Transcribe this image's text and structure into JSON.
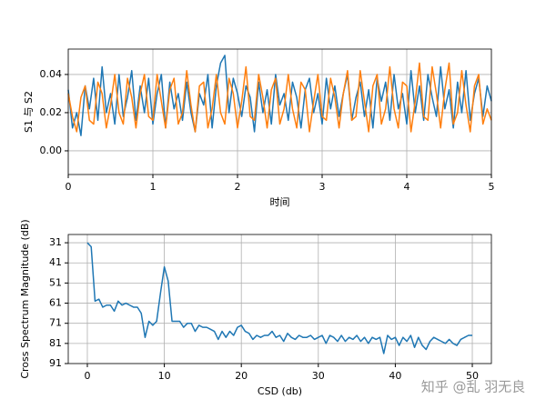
{
  "chart_data": [
    {
      "type": "line",
      "ylabel": "S1 与 S2",
      "xlabel": "时间",
      "x": [
        0,
        0.05,
        0.1,
        0.15,
        0.2,
        0.25,
        0.3,
        0.35,
        0.4,
        0.45,
        0.5,
        0.55,
        0.6,
        0.65,
        0.7,
        0.75,
        0.8,
        0.85,
        0.9,
        0.95,
        1,
        1.05,
        1.1,
        1.15,
        1.2,
        1.25,
        1.3,
        1.35,
        1.4,
        1.45,
        1.5,
        1.55,
        1.6,
        1.65,
        1.7,
        1.75,
        1.8,
        1.85,
        1.9,
        1.95,
        2,
        2.05,
        2.1,
        2.15,
        2.2,
        2.25,
        2.3,
        2.35,
        2.4,
        2.45,
        2.5,
        2.55,
        2.6,
        2.65,
        2.7,
        2.75,
        2.8,
        2.85,
        2.9,
        2.95,
        3,
        3.05,
        3.1,
        3.15,
        3.2,
        3.25,
        3.3,
        3.35,
        3.4,
        3.45,
        3.5,
        3.55,
        3.6,
        3.65,
        3.7,
        3.75,
        3.8,
        3.85,
        3.9,
        3.95,
        4,
        4.05,
        4.1,
        4.15,
        4.2,
        4.25,
        4.3,
        4.35,
        4.4,
        4.45,
        4.5,
        4.55,
        4.6,
        4.65,
        4.7,
        4.75,
        4.8,
        4.85,
        4.9,
        4.95,
        5
      ],
      "series": [
        {
          "color": "#1f77b4",
          "values": [
            0.032,
            0.012,
            0.02,
            0.008,
            0.034,
            0.022,
            0.038,
            0.016,
            0.044,
            0.02,
            0.03,
            0.014,
            0.04,
            0.018,
            0.028,
            0.042,
            0.016,
            0.034,
            0.02,
            0.038,
            0.014,
            0.03,
            0.04,
            0.012,
            0.036,
            0.022,
            0.03,
            0.016,
            0.036,
            0.02,
            0.01,
            0.03,
            0.024,
            0.04,
            0.012,
            0.034,
            0.046,
            0.05,
            0.02,
            0.038,
            0.03,
            0.018,
            0.034,
            0.028,
            0.01,
            0.036,
            0.02,
            0.032,
            0.014,
            0.04,
            0.024,
            0.03,
            0.016,
            0.036,
            0.028,
            0.012,
            0.032,
            0.038,
            0.02,
            0.03,
            0.014,
            0.038,
            0.022,
            0.034,
            0.018,
            0.03,
            0.04,
            0.016,
            0.028,
            0.036,
            0.018,
            0.032,
            0.012,
            0.038,
            0.026,
            0.036,
            0.016,
            0.04,
            0.022,
            0.03,
            0.014,
            0.042,
            0.02,
            0.034,
            0.016,
            0.04,
            0.028,
            0.018,
            0.044,
            0.022,
            0.032,
            0.012,
            0.036,
            0.02,
            0.042,
            0.016,
            0.03,
            0.038,
            0.018,
            0.034,
            0.026
          ]
        },
        {
          "color": "#ff7f0e",
          "values": [
            0.03,
            0.018,
            0.01,
            0.028,
            0.034,
            0.016,
            0.014,
            0.036,
            0.03,
            0.012,
            0.024,
            0.04,
            0.02,
            0.014,
            0.038,
            0.028,
            0.012,
            0.03,
            0.04,
            0.018,
            0.016,
            0.04,
            0.026,
            0.012,
            0.032,
            0.038,
            0.014,
            0.02,
            0.042,
            0.024,
            0.01,
            0.034,
            0.036,
            0.012,
            0.022,
            0.04,
            0.02,
            0.014,
            0.038,
            0.03,
            0.012,
            0.026,
            0.044,
            0.018,
            0.016,
            0.04,
            0.028,
            0.012,
            0.032,
            0.038,
            0.014,
            0.022,
            0.04,
            0.022,
            0.012,
            0.036,
            0.032,
            0.01,
            0.026,
            0.04,
            0.018,
            0.016,
            0.038,
            0.028,
            0.012,
            0.03,
            0.042,
            0.016,
            0.018,
            0.042,
            0.026,
            0.01,
            0.034,
            0.04,
            0.014,
            0.022,
            0.044,
            0.022,
            0.012,
            0.036,
            0.034,
            0.01,
            0.026,
            0.046,
            0.018,
            0.016,
            0.044,
            0.03,
            0.012,
            0.032,
            0.046,
            0.014,
            0.02,
            0.042,
            0.024,
            0.01,
            0.034,
            0.04,
            0.014,
            0.022,
            0.016
          ]
        }
      ],
      "xlim": [
        0,
        5
      ],
      "xticks": [
        0,
        1,
        2,
        3,
        4,
        5
      ],
      "ylim": [
        -0.0124,
        0.0533
      ],
      "yticks": [
        {
          "value": 0,
          "label": "0.00"
        },
        {
          "value": 0.02,
          "label": "0.02"
        },
        {
          "value": 0.04,
          "label": "0.04"
        }
      ],
      "grid": true
    },
    {
      "type": "line",
      "ylabel": "Cross Spectrum Magnitude (dB)",
      "xlabel": "CSD (db)",
      "x": [
        0,
        0.5,
        1,
        1.5,
        2,
        2.5,
        3,
        3.5,
        4,
        4.5,
        5,
        5.5,
        6,
        6.5,
        7,
        7.5,
        8,
        8.5,
        9,
        9.5,
        10,
        10.5,
        11,
        11.5,
        12,
        12.5,
        13,
        13.5,
        14,
        14.5,
        15,
        15.5,
        16,
        16.5,
        17,
        17.5,
        18,
        18.5,
        19,
        19.5,
        20,
        20.5,
        21,
        21.5,
        22,
        22.5,
        23,
        23.5,
        24,
        24.5,
        25,
        25.5,
        26,
        26.5,
        27,
        27.5,
        28,
        28.5,
        29,
        29.5,
        30,
        30.5,
        31,
        31.5,
        32,
        32.5,
        33,
        33.5,
        34,
        34.5,
        35,
        35.5,
        36,
        36.5,
        37,
        37.5,
        38,
        38.5,
        39,
        39.5,
        40,
        40.5,
        41,
        41.5,
        42,
        42.5,
        43,
        43.5,
        44,
        44.5,
        45,
        45.5,
        46,
        46.5,
        47,
        47.5,
        48,
        48.5,
        49,
        49.5,
        50
      ],
      "series": [
        {
          "color": "#1f77b4",
          "values": [
            31,
            33,
            60,
            59,
            63,
            62,
            62,
            65,
            60,
            62,
            61,
            62,
            63,
            63,
            66,
            78,
            70,
            72,
            70,
            56,
            43,
            50,
            70,
            70,
            70,
            73,
            71,
            71,
            75,
            72,
            73,
            73,
            74,
            75,
            79,
            75,
            78,
            75,
            77,
            73,
            72,
            75,
            76,
            79,
            77,
            78,
            77,
            77,
            75,
            78,
            77,
            80,
            76,
            78,
            79,
            77,
            78,
            78,
            77,
            79,
            78,
            77,
            81,
            77,
            78,
            80,
            77,
            80,
            78,
            79,
            77,
            80,
            78,
            81,
            78,
            79,
            78,
            86,
            77,
            79,
            78,
            82,
            78,
            80,
            77,
            83,
            78,
            82,
            84,
            80,
            78,
            79,
            80,
            81,
            79,
            81,
            82,
            79,
            78,
            77,
            77
          ]
        }
      ],
      "xlim": [
        -2.48,
        52.48
      ],
      "xticks": [
        0,
        10,
        20,
        30,
        40,
        50
      ],
      "ylim": [
        91,
        26.9
      ],
      "yticks": [
        31,
        41,
        51,
        61,
        71,
        81,
        91
      ],
      "grid": true
    }
  ],
  "watermark": "知乎 @乱 羽无良"
}
